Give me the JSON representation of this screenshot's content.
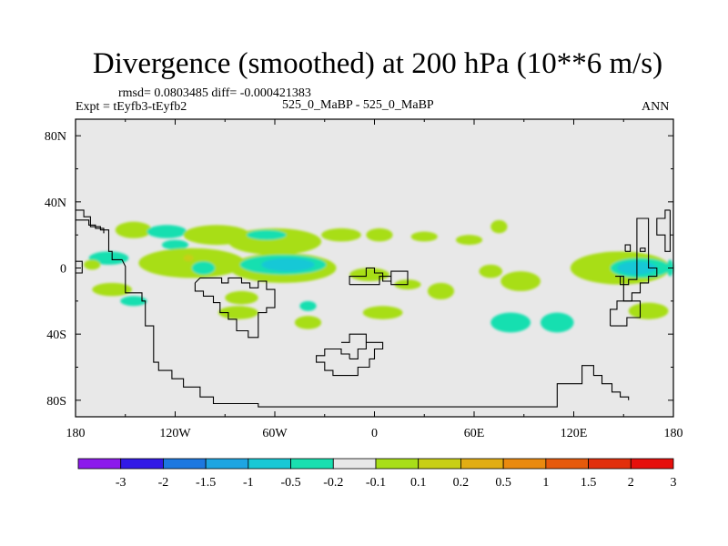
{
  "chart_data": {
    "type": "heatmap",
    "title": "Divergence (smoothed) at 200 hPa (10**6 m/s)",
    "stats_text": "rmsd= 0.0803485 diff= -0.000421383",
    "expt_text": "Expt = tEyfb3-tEyfb2",
    "case_text": "525_0_MaBP - 525_0_MaBP",
    "season_text": "ANN",
    "xlim": [
      -180,
      180
    ],
    "ylim": [
      -90,
      90
    ],
    "xticks": [
      {
        "value": -180,
        "label": "180"
      },
      {
        "value": -120,
        "label": "120W"
      },
      {
        "value": -60,
        "label": "60W"
      },
      {
        "value": 0,
        "label": "0"
      },
      {
        "value": 60,
        "label": "60E"
      },
      {
        "value": 120,
        "label": "120E"
      },
      {
        "value": 180,
        "label": "180"
      }
    ],
    "yticks": [
      {
        "value": 80,
        "label": "80N"
      },
      {
        "value": 40,
        "label": "40N"
      },
      {
        "value": 0,
        "label": "0"
      },
      {
        "value": -40,
        "label": "40S"
      },
      {
        "value": -80,
        "label": "80S"
      }
    ],
    "colorbar": {
      "colors": [
        "#8c1aeb",
        "#3219e6",
        "#1d78e0",
        "#1ea5e2",
        "#18c8d6",
        "#19dfb0",
        "#e8e8e8",
        "#a8de18",
        "#c8cf16",
        "#e2ad13",
        "#ea8a0f",
        "#e65a0c",
        "#e22f0c",
        "#e60f0c"
      ],
      "labels": [
        "-3",
        "-2",
        "-1.5",
        "-1",
        "-0.5",
        "-0.2",
        "-0.1",
        "0.1",
        "0.2",
        "0.5",
        "1",
        "1.5",
        "2",
        "3"
      ]
    },
    "features": [
      {
        "c": "#a8de18",
        "lon": -145,
        "lat": 23,
        "rx": 11,
        "ry": 5
      },
      {
        "c": "#19dfb0",
        "lon": -125,
        "lat": 22,
        "rx": 12,
        "ry": 4
      },
      {
        "c": "#a8de18",
        "lon": -95,
        "lat": 20,
        "rx": 20,
        "ry": 6
      },
      {
        "c": "#19dfb0",
        "lon": -120,
        "lat": 14,
        "rx": 8,
        "ry": 3
      },
      {
        "c": "#a8de18",
        "lon": -60,
        "lat": 16,
        "rx": 28,
        "ry": 8
      },
      {
        "c": "#19dfb0",
        "lon": -65,
        "lat": 20,
        "rx": 12,
        "ry": 3
      },
      {
        "c": "#a8de18",
        "lon": -20,
        "lat": 20,
        "rx": 12,
        "ry": 4
      },
      {
        "c": "#a8de18",
        "lon": 3,
        "lat": 20,
        "rx": 8,
        "ry": 4
      },
      {
        "c": "#a8de18",
        "lon": 30,
        "lat": 19,
        "rx": 8,
        "ry": 3
      },
      {
        "c": "#a8de18",
        "lon": 57,
        "lat": 17,
        "rx": 8,
        "ry": 3
      },
      {
        "c": "#a8de18",
        "lon": 75,
        "lat": 25,
        "rx": 5,
        "ry": 4
      },
      {
        "c": "#a8de18",
        "lon": -110,
        "lat": 3,
        "rx": 32,
        "ry": 9
      },
      {
        "c": "#19dfb0",
        "lon": -160,
        "lat": 6,
        "rx": 12,
        "ry": 4
      },
      {
        "c": "#19dfb0",
        "lon": -103,
        "lat": 0,
        "rx": 7,
        "ry": 4
      },
      {
        "c": "#c8cf16",
        "lon": -112,
        "lat": 6,
        "rx": 3,
        "ry": 2
      },
      {
        "c": "#a8de18",
        "lon": -55,
        "lat": 0,
        "rx": 32,
        "ry": 9
      },
      {
        "c": "#19dfb0",
        "lon": -55,
        "lat": 2,
        "rx": 26,
        "ry": 6
      },
      {
        "c": "#18c8d6",
        "lon": -52,
        "lat": 2,
        "rx": 16,
        "ry": 4
      },
      {
        "c": "#a8de18",
        "lon": -170,
        "lat": 2,
        "rx": 5,
        "ry": 3
      },
      {
        "c": "#a8de18",
        "lon": -158,
        "lat": -13,
        "rx": 12,
        "ry": 4
      },
      {
        "c": "#a8de18",
        "lon": -3,
        "lat": -4,
        "rx": 12,
        "ry": 4
      },
      {
        "c": "#a8de18",
        "lon": 20,
        "lat": -10,
        "rx": 8,
        "ry": 3
      },
      {
        "c": "#a8de18",
        "lon": 40,
        "lat": -14,
        "rx": 8,
        "ry": 5
      },
      {
        "c": "#a8de18",
        "lon": 88,
        "lat": -8,
        "rx": 12,
        "ry": 6
      },
      {
        "c": "#a8de18",
        "lon": 70,
        "lat": -2,
        "rx": 7,
        "ry": 4
      },
      {
        "c": "#a8de18",
        "lon": 148,
        "lat": 0,
        "rx": 30,
        "ry": 10
      },
      {
        "c": "#19dfb0",
        "lon": 160,
        "lat": 0,
        "rx": 18,
        "ry": 6
      },
      {
        "c": "#18c8d6",
        "lon": 158,
        "lat": 0,
        "rx": 12,
        "ry": 4
      },
      {
        "c": "#19dfb0",
        "lon": 178,
        "lat": 0,
        "rx": 2,
        "ry": 5
      },
      {
        "c": "#a8de18",
        "lon": 165,
        "lat": -26,
        "rx": 12,
        "ry": 5
      },
      {
        "c": "#19dfb0",
        "lon": 110,
        "lat": -33,
        "rx": 10,
        "ry": 6
      },
      {
        "c": "#a8de18",
        "lon": -82,
        "lat": -27,
        "rx": 12,
        "ry": 4
      },
      {
        "c": "#a8de18",
        "lon": -80,
        "lat": -18,
        "rx": 10,
        "ry": 4
      },
      {
        "c": "#19dfb0",
        "lon": -145,
        "lat": -20,
        "rx": 8,
        "ry": 3
      },
      {
        "c": "#a8de18",
        "lon": 5,
        "lat": -27,
        "rx": 12,
        "ry": 4
      },
      {
        "c": "#19dfb0",
        "lon": 82,
        "lat": -33,
        "rx": 12,
        "ry": 6
      },
      {
        "c": "#a8de18",
        "lon": -40,
        "lat": -33,
        "rx": 8,
        "ry": 4
      },
      {
        "c": "#19dfb0",
        "lon": -40,
        "lat": -23,
        "rx": 5,
        "ry": 3
      }
    ],
    "coastlines": [
      [
        [
          -180,
          35
        ],
        [
          -175,
          35
        ],
        [
          -175,
          31
        ],
        [
          -171,
          31
        ],
        [
          -171,
          25
        ],
        [
          -165,
          25
        ],
        [
          -165,
          23
        ],
        [
          -160,
          23
        ],
        [
          -160,
          10
        ],
        [
          -158,
          10
        ],
        [
          -158,
          5
        ],
        [
          -152,
          5
        ],
        [
          -150,
          1
        ],
        [
          -150,
          -15
        ],
        [
          -143,
          -15
        ],
        [
          -143,
          -15
        ],
        [
          -140,
          -15
        ],
        [
          -140,
          -20
        ],
        [
          -138,
          -20
        ],
        [
          -138,
          -35
        ],
        [
          -133,
          -35
        ],
        [
          -133,
          -57
        ],
        [
          -130,
          -57
        ],
        [
          -130,
          -62
        ],
        [
          -122,
          -62
        ],
        [
          -122,
          -67
        ],
        [
          -115,
          -67
        ],
        [
          -115,
          -72
        ],
        [
          -105,
          -72
        ],
        [
          -105,
          -78
        ],
        [
          -97,
          -78
        ],
        [
          -97,
          -82
        ],
        [
          -70,
          -82
        ],
        [
          -70,
          -84
        ],
        [
          -40,
          -84
        ],
        [
          -10,
          -84
        ],
        [
          20,
          -84
        ],
        [
          70,
          -84
        ],
        [
          110,
          -84
        ],
        [
          110,
          -70
        ],
        [
          125,
          -70
        ],
        [
          125,
          -59
        ],
        [
          132,
          -59
        ],
        [
          132,
          -65
        ],
        [
          137,
          -65
        ],
        [
          137,
          -70
        ],
        [
          143,
          -70
        ],
        [
          143,
          -75
        ],
        [
          148,
          -75
        ],
        [
          148,
          -78
        ],
        [
          153,
          -78
        ],
        [
          153,
          -80
        ]
      ],
      [
        [
          -180,
          29
        ],
        [
          -172,
          29
        ],
        [
          -172,
          26
        ],
        [
          -168,
          26
        ],
        [
          -168,
          24
        ],
        [
          -163,
          24
        ],
        [
          -163,
          21
        ]
      ],
      [
        [
          -180,
          4
        ],
        [
          -176,
          4
        ],
        [
          -176,
          -3
        ],
        [
          -180,
          -3
        ]
      ],
      [
        [
          -108,
          -9
        ],
        [
          -108,
          -14
        ],
        [
          -103,
          -14
        ],
        [
          -103,
          -17
        ],
        [
          -97,
          -17
        ],
        [
          -97,
          -21
        ],
        [
          -93,
          -21
        ],
        [
          -93,
          -27
        ],
        [
          -88,
          -27
        ],
        [
          -88,
          -31
        ],
        [
          -83,
          -31
        ],
        [
          -83,
          -38
        ],
        [
          -76,
          -38
        ],
        [
          -76,
          -42
        ],
        [
          -70,
          -42
        ],
        [
          -70,
          -27
        ],
        [
          -65,
          -27
        ],
        [
          -65,
          -24
        ],
        [
          -60,
          -24
        ],
        [
          -60,
          -13
        ],
        [
          -65,
          -13
        ],
        [
          -65,
          -8
        ],
        [
          -70,
          -8
        ],
        [
          -70,
          -12
        ],
        [
          -75,
          -12
        ],
        [
          -75,
          -9
        ],
        [
          -80,
          -9
        ],
        [
          -80,
          -6
        ],
        [
          -88,
          -6
        ],
        [
          -88,
          -9
        ],
        [
          -92,
          -9
        ],
        [
          -92,
          -6
        ],
        [
          -100,
          -6
        ],
        [
          -105,
          -6
        ],
        [
          -108,
          -9
        ]
      ],
      [
        [
          -15,
          -10
        ],
        [
          -15,
          -5
        ],
        [
          -5,
          -5
        ],
        [
          -5,
          0
        ],
        [
          0,
          0
        ],
        [
          0,
          -3
        ],
        [
          5,
          -3
        ],
        [
          5,
          -8
        ],
        [
          10,
          -8
        ],
        [
          10,
          -2
        ],
        [
          20,
          -2
        ],
        [
          20,
          -10
        ],
        [
          10,
          -10
        ],
        [
          10,
          -5
        ],
        [
          3,
          -5
        ],
        [
          3,
          -10
        ],
        [
          -15,
          -10
        ]
      ],
      [
        [
          -15,
          -55
        ],
        [
          -10,
          -55
        ],
        [
          -10,
          -49
        ],
        [
          -5,
          -49
        ],
        [
          -5,
          -45
        ],
        [
          5,
          -45
        ],
        [
          5,
          -49
        ],
        [
          0,
          -49
        ],
        [
          0,
          -55
        ],
        [
          -3,
          -55
        ],
        [
          -3,
          -60
        ],
        [
          -10,
          -60
        ],
        [
          -10,
          -65
        ],
        [
          -25,
          -65
        ],
        [
          -25,
          -62
        ],
        [
          -30,
          -62
        ],
        [
          -30,
          -57
        ],
        [
          -35,
          -57
        ],
        [
          -35,
          -53
        ],
        [
          -30,
          -53
        ],
        [
          -30,
          -49
        ],
        [
          -20,
          -49
        ],
        [
          -20,
          -52
        ],
        [
          -15,
          -52
        ],
        [
          -15,
          -55
        ]
      ],
      [
        [
          -20,
          -45
        ],
        [
          -15,
          -45
        ],
        [
          -15,
          -40
        ],
        [
          -5,
          -40
        ],
        [
          -5,
          -45
        ]
      ],
      [
        [
          145,
          -5
        ],
        [
          150,
          -5
        ],
        [
          150,
          -20
        ],
        [
          155,
          -20
        ],
        [
          155,
          -15
        ],
        [
          160,
          -15
        ],
        [
          160,
          -9
        ],
        [
          165,
          -9
        ],
        [
          165,
          -5
        ],
        [
          170,
          -5
        ],
        [
          170,
          0
        ],
        [
          165,
          0
        ],
        [
          165,
          30
        ],
        [
          158,
          30
        ],
        [
          158,
          -7
        ],
        [
          153,
          -7
        ],
        [
          153,
          -10
        ],
        [
          148,
          -10
        ],
        [
          148,
          -5
        ]
      ],
      [
        [
          178,
          35
        ],
        [
          175,
          35
        ],
        [
          175,
          30
        ],
        [
          170,
          30
        ],
        [
          170,
          20
        ],
        [
          175,
          20
        ],
        [
          175,
          10
        ],
        [
          178,
          10
        ],
        [
          178,
          35
        ]
      ],
      [
        [
          142,
          -35
        ],
        [
          142,
          -25
        ],
        [
          146,
          -25
        ],
        [
          146,
          -20
        ],
        [
          160,
          -20
        ],
        [
          160,
          -30
        ],
        [
          152,
          -30
        ],
        [
          152,
          -35
        ],
        [
          142,
          -35
        ]
      ],
      [
        [
          151,
          10
        ],
        [
          151,
          14
        ],
        [
          154,
          14
        ],
        [
          154,
          10
        ],
        [
          151,
          10
        ]
      ],
      [
        [
          160,
          12
        ],
        [
          163,
          12
        ],
        [
          163,
          10
        ],
        [
          160,
          10
        ],
        [
          160,
          12
        ]
      ]
    ]
  }
}
